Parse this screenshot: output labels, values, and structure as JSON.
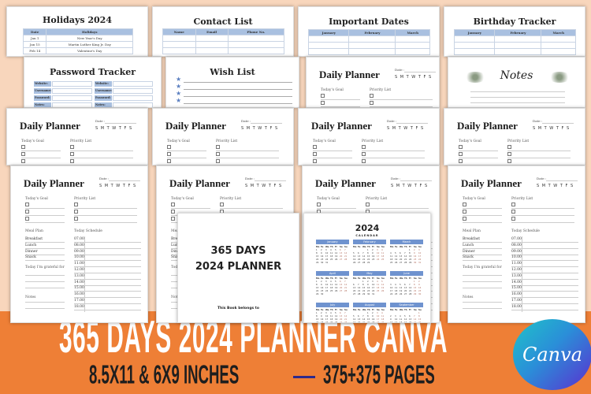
{
  "holidays": {
    "title": "Holidays 2024",
    "headers": [
      "Date",
      "Holidays"
    ],
    "rows": [
      [
        "Jan 1",
        "New Year's Day"
      ],
      [
        "Jan 15",
        "Martin Luther King Jr. Day"
      ],
      [
        "Feb 14",
        "Valentine's Day"
      ]
    ]
  },
  "contact": {
    "title": "Contact List",
    "headers": [
      "Name",
      "Email",
      "Phone No."
    ]
  },
  "dates": {
    "title": "Important Dates",
    "headers": [
      "January",
      "February",
      "March"
    ]
  },
  "birthday": {
    "title": "Birthday Tracker",
    "headers": [
      "January",
      "February",
      "March"
    ]
  },
  "password": {
    "title": "Password Tracker",
    "fields": [
      "Website:",
      "Username:",
      "Password:",
      "Notes:"
    ]
  },
  "wish": {
    "title": "Wish List",
    "star_icon": "star-icon",
    "star_color": "#5b7fc0"
  },
  "notes": {
    "title": "Notes"
  },
  "planner": {
    "title": "Daily Planner",
    "date_label": "Date :",
    "days": "S M T W T F S",
    "goal_label": "Today's Goal",
    "priority_label": "Priority List",
    "meal_label": "Meal Plan",
    "schedule_label": "Today Schedule",
    "meals": [
      "Breakfast",
      "Lunch",
      "Dinner",
      "Snack"
    ],
    "times": [
      "07.00",
      "08.00",
      "09.00",
      "10.00",
      "11.00",
      "12.00",
      "13.00",
      "14.00",
      "15.00",
      "16.00",
      "17.00",
      "18.00"
    ],
    "grateful_label": "Today I'm grateful for",
    "notes_label": "Notes"
  },
  "cover": {
    "line1": "365 DAYS",
    "line2": "2024 PLANNER",
    "belongs": "This Book belongs to"
  },
  "calendar": {
    "year": "2024",
    "label": "CALENDAR",
    "months": [
      "January",
      "February",
      "March",
      "April",
      "May",
      "June",
      "July",
      "August",
      "September"
    ],
    "weekdays": [
      "Mo",
      "Tu",
      "We",
      "Th",
      "Fr",
      "Sa",
      "Su"
    ],
    "accent": "#6f93cf"
  },
  "banner": {
    "title": "365 DAYS 2024 PLANNER CANVA",
    "size": "8.5X11 & 6X9 INCHES",
    "pages": "375+375 PAGES",
    "logo": "Canva",
    "background": "#ee7f36"
  }
}
